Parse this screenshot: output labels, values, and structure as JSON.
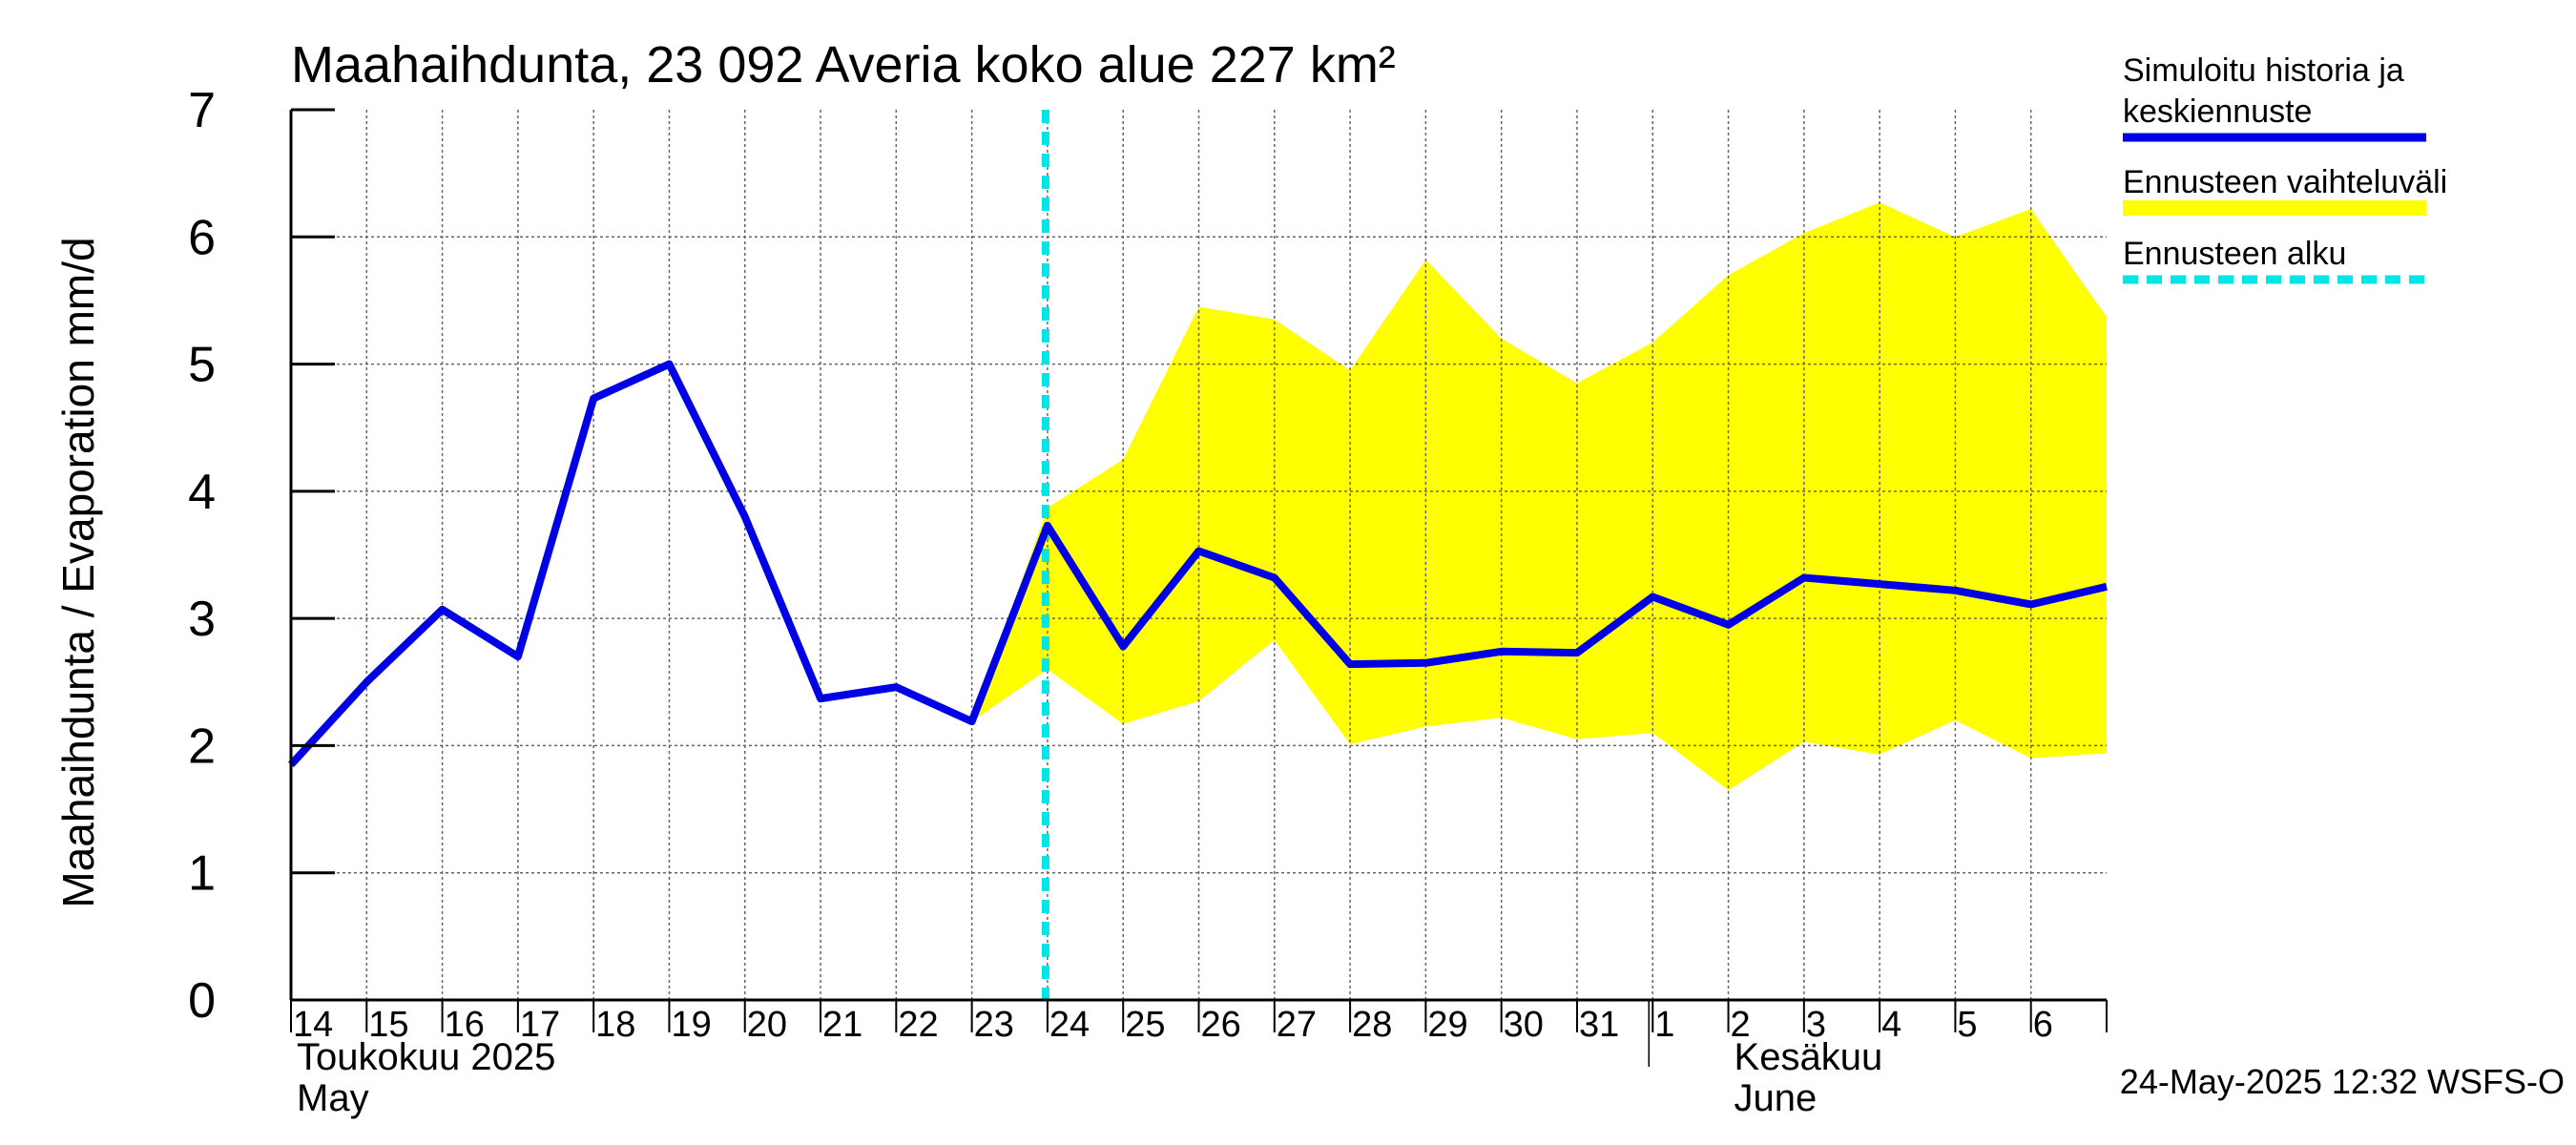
{
  "chart_data": {
    "type": "line",
    "title": "Maahaihdunta, 23 092 Averia koko alue 227 km²",
    "ylabel": "Maahaihdunta / Evaporation   mm/d",
    "ylim": [
      0,
      7
    ],
    "yticks": [
      "0",
      "1",
      "2",
      "3",
      "4",
      "5",
      "6",
      "7"
    ],
    "xlim": [
      "2025-05-14",
      "2025-06-07"
    ],
    "day_labels": [
      "14",
      "15",
      "16",
      "17",
      "18",
      "19",
      "20",
      "21",
      "22",
      "23",
      "24",
      "25",
      "26",
      "27",
      "28",
      "29",
      "30",
      "31",
      "1",
      "2",
      "3",
      "4",
      "5",
      "6"
    ],
    "month_labels": [
      {
        "line1": "Toukokuu  2025",
        "line2": "May",
        "date": "2025-05-14"
      },
      {
        "line1": "Kesäkuu",
        "line2": "June",
        "date": "2025-06-02"
      }
    ],
    "grid": true,
    "legend": {
      "placement": "right",
      "entries": [
        {
          "label_line1": "Simuloitu historia ja",
          "label_line2": "keskiennuste",
          "color": "#0000e6",
          "style": "solid"
        },
        {
          "label_line1": "Ennusteen vaihteluväli",
          "label_line2": "",
          "color": "#ffff00",
          "style": "band"
        },
        {
          "label_line1": "Ennusteen alku",
          "label_line2": "",
          "color": "#00e6e6",
          "style": "dashed"
        }
      ]
    },
    "forecast_start": "2025-05-24",
    "series": [
      {
        "name": "Simuloitu historia ja keskiennuste",
        "color": "#0000e6",
        "x": [
          "2025-05-14",
          "2025-05-15",
          "2025-05-16",
          "2025-05-17",
          "2025-05-18",
          "2025-05-19",
          "2025-05-20",
          "2025-05-21",
          "2025-05-22",
          "2025-05-23",
          "2025-05-24",
          "2025-05-25",
          "2025-05-26",
          "2025-05-27",
          "2025-05-28",
          "2025-05-29",
          "2025-05-30",
          "2025-05-31",
          "2025-06-01",
          "2025-06-02",
          "2025-06-03",
          "2025-06-04",
          "2025-06-05",
          "2025-06-06",
          "2025-06-07"
        ],
        "y": [
          1.85,
          2.5,
          3.07,
          2.7,
          4.73,
          5.0,
          3.8,
          2.37,
          2.46,
          2.19,
          3.73,
          2.78,
          3.53,
          3.32,
          2.64,
          2.65,
          2.74,
          2.73,
          3.17,
          2.95,
          3.32,
          3.27,
          3.22,
          3.11,
          3.25
        ]
      }
    ],
    "band": {
      "name": "Ennusteen vaihteluväli",
      "color": "#ffff00",
      "x": [
        "2025-05-23",
        "2025-05-24",
        "2025-05-25",
        "2025-05-26",
        "2025-05-27",
        "2025-05-28",
        "2025-05-29",
        "2025-05-30",
        "2025-05-31",
        "2025-06-01",
        "2025-06-02",
        "2025-06-03",
        "2025-06-04",
        "2025-06-05",
        "2025-06-06",
        "2025-06-07"
      ],
      "lower": [
        2.19,
        2.6,
        2.17,
        2.35,
        2.83,
        2.01,
        2.15,
        2.22,
        2.05,
        2.1,
        1.65,
        2.03,
        1.93,
        2.2,
        1.9,
        1.94
      ],
      "upper": [
        2.19,
        3.87,
        4.25,
        5.45,
        5.35,
        4.95,
        5.82,
        5.2,
        4.85,
        5.17,
        5.7,
        6.03,
        6.27,
        6.0,
        6.22,
        5.37
      ]
    }
  },
  "timestamp": "24-May-2025 12:32 WSFS-O"
}
